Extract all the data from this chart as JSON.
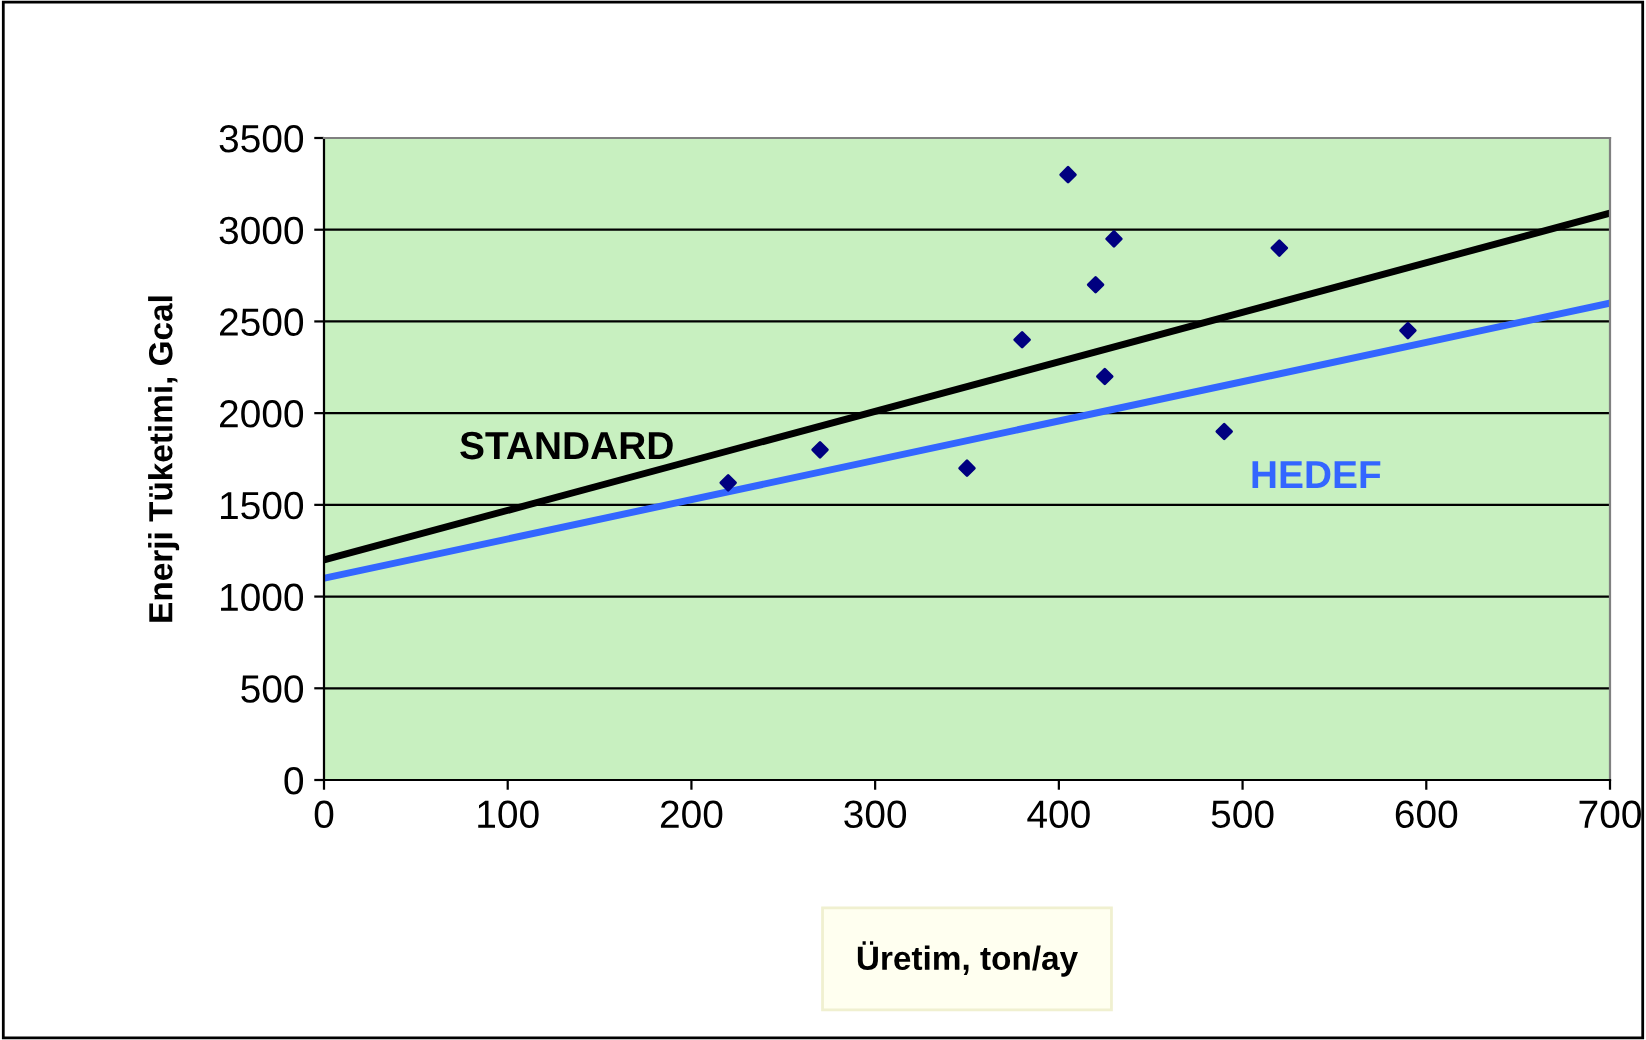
{
  "chart_data": {
    "type": "scatter",
    "xlabel": "Üretim, ton/ay",
    "ylabel": "Enerji Tüketimi, Gcal",
    "xlim": [
      0,
      700
    ],
    "ylim": [
      0,
      3500
    ],
    "xticks": [
      0,
      100,
      200,
      300,
      400,
      500,
      600,
      700
    ],
    "yticks": [
      0,
      500,
      1000,
      1500,
      2000,
      2500,
      3000,
      3500
    ],
    "grid": "y",
    "legend": false,
    "series": [
      {
        "color": "#000080",
        "marker": "diamond",
        "x": [
          220,
          270,
          350,
          380,
          405,
          420,
          425,
          430,
          490,
          520,
          590
        ],
        "values": [
          1620,
          1800,
          1700,
          2400,
          3300,
          2700,
          2200,
          2950,
          1900,
          2900,
          2450
        ]
      },
      {
        "type": "line",
        "name": "STANDARD",
        "color": "#000000",
        "marker": "none",
        "x": [
          0,
          700
        ],
        "values": [
          1200,
          3090
        ]
      },
      {
        "type": "line",
        "name": "HEDEF",
        "color": "#3366ff",
        "marker": "none",
        "x": [
          0,
          700
        ],
        "values": [
          1100,
          2600
        ]
      }
    ]
  }
}
